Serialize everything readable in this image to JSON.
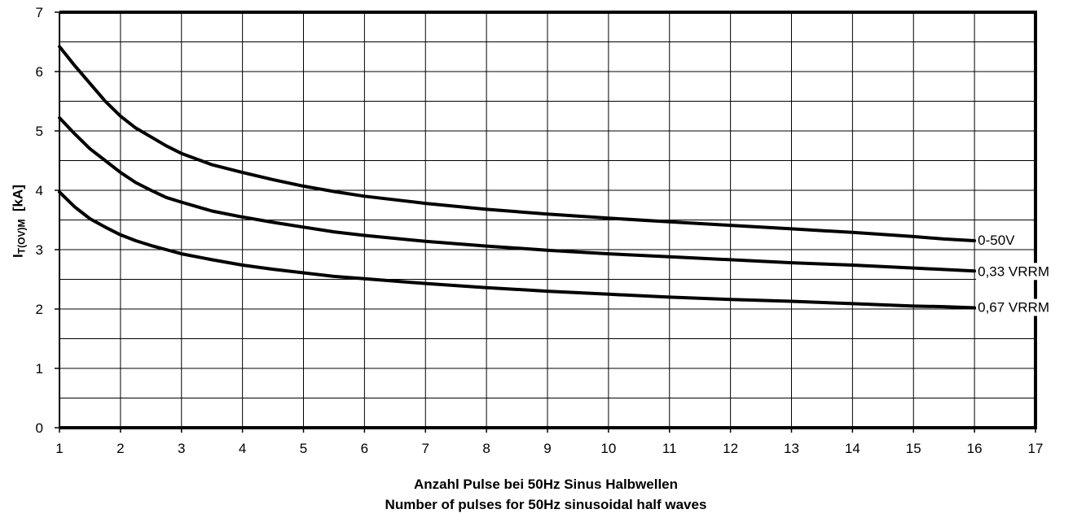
{
  "chart_data": {
    "type": "line",
    "xlabel_line1": "Anzahl Pulse bei 50Hz Sinus Halbwellen",
    "xlabel_line2": "Number of pulses for 50Hz sinusoidal half waves",
    "ylabel_main": "I",
    "ylabel_sub": "T(OV)M",
    "ylabel_unit": "[kA]",
    "xlim": [
      1,
      17
    ],
    "ylim": [
      0,
      7
    ],
    "x_ticks": [
      "1",
      "2",
      "3",
      "4",
      "5",
      "6",
      "7",
      "8",
      "9",
      "10",
      "11",
      "12",
      "13",
      "14",
      "15",
      "16",
      "17"
    ],
    "y_ticks": [
      "0",
      "1",
      "2",
      "3",
      "4",
      "5",
      "6",
      "7"
    ],
    "grid": true,
    "line_color": "#000000",
    "series": [
      {
        "name": "0-50V",
        "points": [
          [
            1,
            6.42
          ],
          [
            1.25,
            6.1
          ],
          [
            1.5,
            5.8
          ],
          [
            1.75,
            5.5
          ],
          [
            2,
            5.25
          ],
          [
            2.25,
            5.05
          ],
          [
            2.5,
            4.9
          ],
          [
            2.75,
            4.75
          ],
          [
            3,
            4.62
          ],
          [
            3.5,
            4.43
          ],
          [
            4,
            4.3
          ],
          [
            4.5,
            4.18
          ],
          [
            5,
            4.07
          ],
          [
            5.5,
            3.98
          ],
          [
            6,
            3.9
          ],
          [
            7,
            3.78
          ],
          [
            8,
            3.68
          ],
          [
            9,
            3.6
          ],
          [
            10,
            3.53
          ],
          [
            11,
            3.47
          ],
          [
            12,
            3.41
          ],
          [
            13,
            3.35
          ],
          [
            14,
            3.29
          ],
          [
            15,
            3.22
          ],
          [
            15.5,
            3.18
          ],
          [
            16,
            3.15
          ]
        ]
      },
      {
        "name": "0,33 VRRM",
        "points": [
          [
            1,
            5.22
          ],
          [
            1.25,
            4.95
          ],
          [
            1.5,
            4.7
          ],
          [
            1.75,
            4.5
          ],
          [
            2,
            4.3
          ],
          [
            2.25,
            4.13
          ],
          [
            2.5,
            4.0
          ],
          [
            2.75,
            3.88
          ],
          [
            3,
            3.8
          ],
          [
            3.5,
            3.65
          ],
          [
            4,
            3.55
          ],
          [
            4.5,
            3.46
          ],
          [
            5,
            3.38
          ],
          [
            5.5,
            3.3
          ],
          [
            6,
            3.24
          ],
          [
            7,
            3.14
          ],
          [
            8,
            3.06
          ],
          [
            9,
            2.99
          ],
          [
            10,
            2.93
          ],
          [
            11,
            2.88
          ],
          [
            12,
            2.83
          ],
          [
            13,
            2.78
          ],
          [
            14,
            2.74
          ],
          [
            15,
            2.69
          ],
          [
            16,
            2.64
          ]
        ]
      },
      {
        "name": "0,67 VRRM",
        "points": [
          [
            1,
            3.97
          ],
          [
            1.25,
            3.72
          ],
          [
            1.5,
            3.52
          ],
          [
            1.75,
            3.38
          ],
          [
            2,
            3.25
          ],
          [
            2.25,
            3.15
          ],
          [
            2.5,
            3.07
          ],
          [
            2.75,
            3.0
          ],
          [
            3,
            2.93
          ],
          [
            3.5,
            2.83
          ],
          [
            4,
            2.74
          ],
          [
            4.5,
            2.67
          ],
          [
            5,
            2.61
          ],
          [
            5.5,
            2.55
          ],
          [
            6,
            2.51
          ],
          [
            7,
            2.43
          ],
          [
            8,
            2.36
          ],
          [
            9,
            2.3
          ],
          [
            10,
            2.25
          ],
          [
            11,
            2.2
          ],
          [
            12,
            2.16
          ],
          [
            13,
            2.13
          ],
          [
            14,
            2.09
          ],
          [
            15,
            2.05
          ],
          [
            15.5,
            2.04
          ],
          [
            16,
            2.02
          ]
        ]
      }
    ]
  }
}
